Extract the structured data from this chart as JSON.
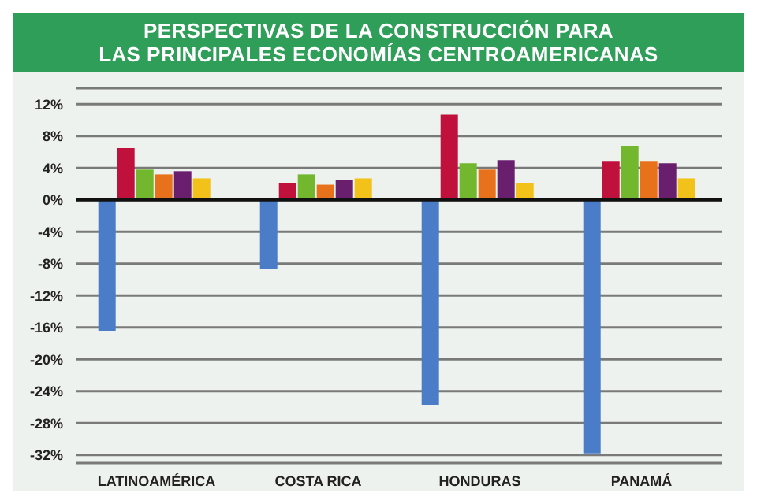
{
  "chart_data": {
    "type": "bar",
    "title": "PERSPECTIVAS DE LA CONSTRUCCIÓN PARA\nLAS PRINCIPALES ECONOMÍAS CENTROAMERICANAS",
    "categories": [
      "LATINOAMÉRICA",
      "COSTA RICA",
      "HONDURAS",
      "PANAMÁ"
    ],
    "series": [
      {
        "color": "#4a7cc7",
        "values": [
          -16.4,
          -8.6,
          -25.7,
          -31.8
        ]
      },
      {
        "color": "#c0103c",
        "values": [
          6.5,
          2.1,
          10.7,
          4.8
        ]
      },
      {
        "color": "#72b72e",
        "values": [
          3.8,
          3.2,
          4.6,
          6.7
        ]
      },
      {
        "color": "#e8721c",
        "values": [
          3.2,
          1.9,
          3.8,
          4.8
        ]
      },
      {
        "color": "#6a1f6e",
        "values": [
          3.6,
          2.5,
          5.0,
          4.6
        ]
      },
      {
        "color": "#f2c21a",
        "values": [
          2.7,
          2.7,
          2.1,
          2.7
        ]
      }
    ],
    "ylim": [
      -33,
      14
    ],
    "yticks": [
      {
        "value": 12,
        "label": "12%"
      },
      {
        "value": 8,
        "label": "8%"
      },
      {
        "value": 4,
        "label": "4%"
      },
      {
        "value": 0,
        "label": "0%"
      },
      {
        "value": -4,
        "label": "-4%"
      },
      {
        "value": -8,
        "label": "-8%"
      },
      {
        "value": -12,
        "label": "-12%"
      },
      {
        "value": -16,
        "label": "-16%"
      },
      {
        "value": -20,
        "label": "-20%"
      },
      {
        "value": -24,
        "label": "-24%"
      },
      {
        "value": -28,
        "label": "-28%"
      },
      {
        "value": -32,
        "label": "-32%"
      }
    ],
    "grid": "y",
    "legend": false
  }
}
